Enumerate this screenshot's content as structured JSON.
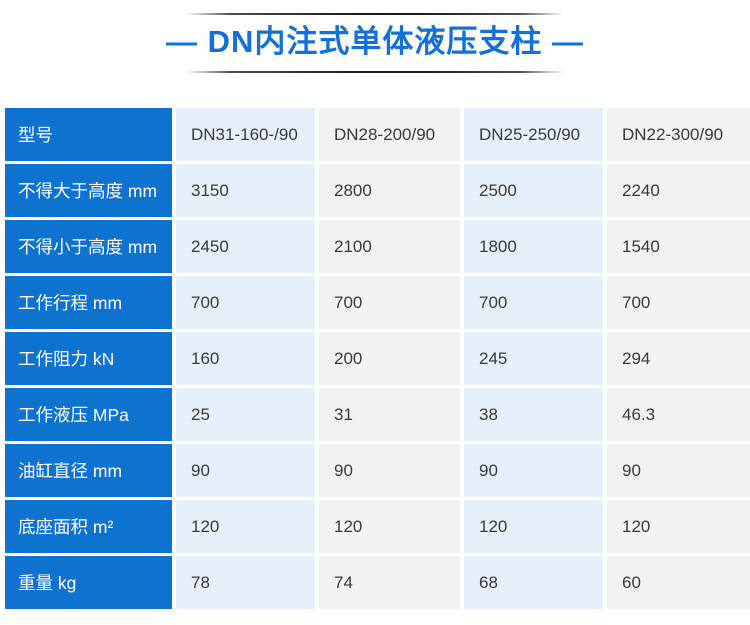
{
  "header": {
    "title": "— DN内注式单体液压支柱 —"
  },
  "colors": {
    "title_text": "#1270d6",
    "row_header_bg": "#0e73cf",
    "row_header_text": "#ffffff",
    "cell_bg_light_blue": "#e6f0fa",
    "cell_bg_light_gray": "#f2f2f2",
    "cell_text": "#3a3a3a",
    "rule_line": "#1d1d1d"
  },
  "table": {
    "rows": [
      {
        "label": "型号",
        "values": [
          "DN31-160-/90",
          "DN28-200/90",
          "DN25-250/90",
          "DN22-300/90"
        ]
      },
      {
        "label": "不得大于高度 mm",
        "values": [
          "3150",
          "2800",
          "2500",
          "2240"
        ]
      },
      {
        "label": "不得小于高度 mm",
        "values": [
          "2450",
          "2100",
          "1800",
          "1540"
        ]
      },
      {
        "label": "工作行程 mm",
        "values": [
          "700",
          "700",
          "700",
          "700"
        ]
      },
      {
        "label": "工作阻力 kN",
        "values": [
          "160",
          "200",
          "245",
          "294"
        ]
      },
      {
        "label": "工作液压 MPa",
        "values": [
          "25",
          "31",
          "38",
          "46.3"
        ]
      },
      {
        "label": "油缸直径 mm",
        "values": [
          "90",
          "90",
          "90",
          "90"
        ]
      },
      {
        "label": "底座面积 m²",
        "values": [
          "120",
          "120",
          "120",
          "120"
        ]
      },
      {
        "label": "重量 kg",
        "values": [
          "78",
          "74",
          "68",
          "60"
        ]
      }
    ]
  }
}
